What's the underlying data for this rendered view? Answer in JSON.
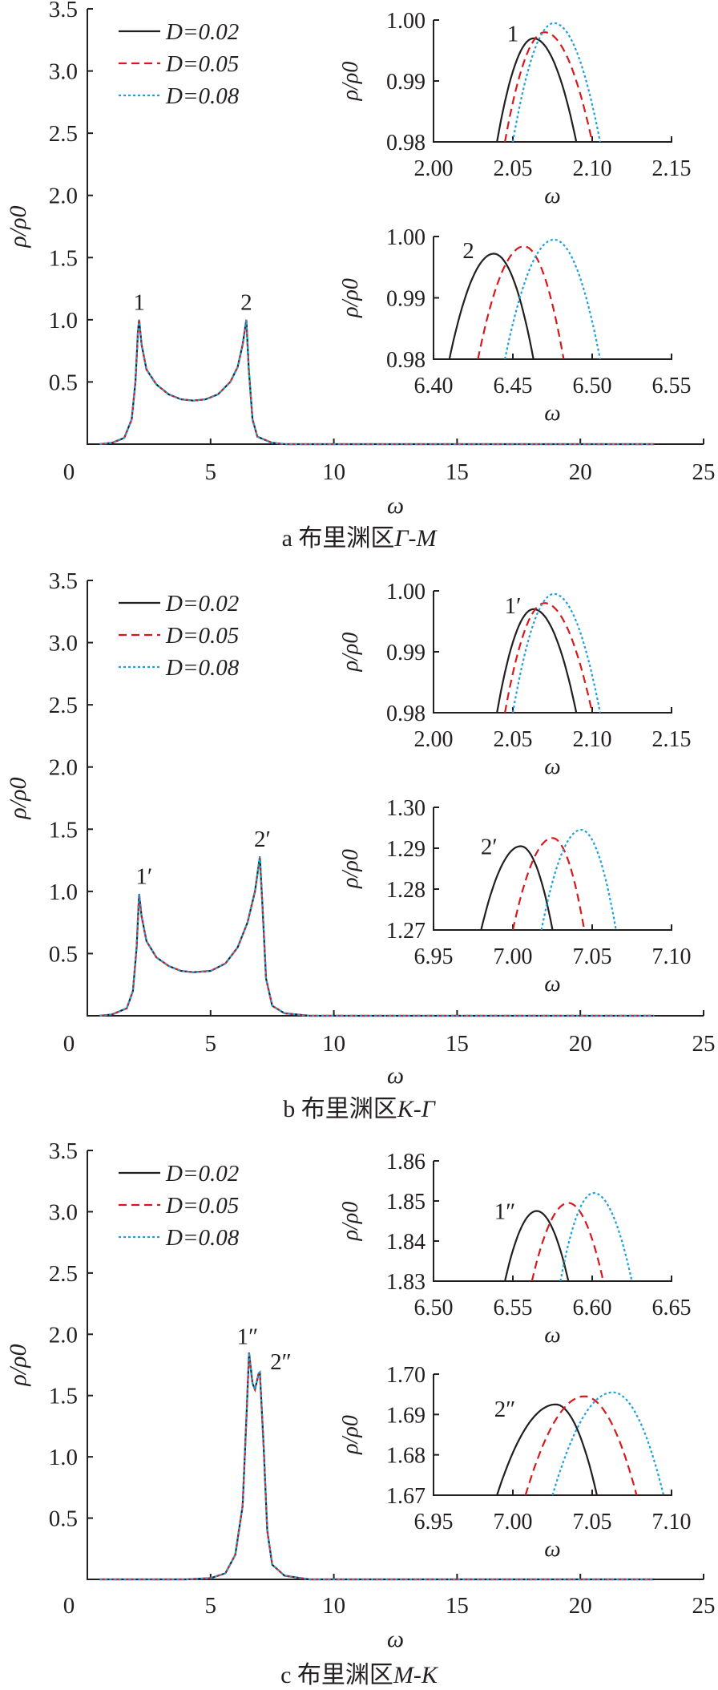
{
  "chart_data": [
    {
      "panel": "a",
      "caption_prefix": "a 布里渊区",
      "caption_region": "Γ-M",
      "main": {
        "type": "line",
        "xlabel": "ω",
        "ylabel": "ρ/ρ0",
        "xlim": [
          0,
          25
        ],
        "ylim": [
          0,
          3.5
        ],
        "xticks": [
          "0",
          "5",
          "10",
          "15",
          "20",
          "25"
        ],
        "yticks": [
          "0.5",
          "1.0",
          "1.5",
          "2.0",
          "2.5",
          "3.0",
          "3.5"
        ],
        "curve": [
          [
            0.5,
            0
          ],
          [
            1,
            0.01
          ],
          [
            1.5,
            0.05
          ],
          [
            1.8,
            0.2
          ],
          [
            1.95,
            0.5
          ],
          [
            2.05,
            0.9
          ],
          [
            2.1,
            1.0
          ],
          [
            2.2,
            0.8
          ],
          [
            2.4,
            0.6
          ],
          [
            2.8,
            0.48
          ],
          [
            3.3,
            0.4
          ],
          [
            3.8,
            0.36
          ],
          [
            4.3,
            0.35
          ],
          [
            4.8,
            0.36
          ],
          [
            5.3,
            0.4
          ],
          [
            5.8,
            0.5
          ],
          [
            6.1,
            0.62
          ],
          [
            6.3,
            0.8
          ],
          [
            6.45,
            1.0
          ],
          [
            6.55,
            0.6
          ],
          [
            6.7,
            0.2
          ],
          [
            6.9,
            0.06
          ],
          [
            7.5,
            0.01
          ],
          [
            8,
            0
          ],
          [
            23,
            0
          ]
        ],
        "annotations": [
          {
            "text": "1",
            "x": 2.1,
            "y": 1.08
          },
          {
            "text": "2",
            "x": 6.45,
            "y": 1.08
          }
        ]
      },
      "insets": [
        {
          "xlim": [
            2.0,
            2.15
          ],
          "ylim": [
            0.98,
            1.0
          ],
          "xticks": [
            "2.00",
            "2.05",
            "2.10",
            "2.15"
          ],
          "yticks": [
            "0.98",
            "0.99",
            "1.00"
          ],
          "xlabel": "ω",
          "ylabel": "ρ/ρ0",
          "series": [
            {
              "x0": 2.04,
              "x1": 2.09,
              "px": 2.063,
              "py": 0.997
            },
            {
              "x0": 2.045,
              "x1": 2.1,
              "px": 2.07,
              "py": 0.998
            },
            {
              "x0": 2.05,
              "x1": 2.105,
              "px": 2.076,
              "py": 0.9995
            }
          ],
          "annotation": {
            "text": "1",
            "x": 2.05,
            "y": 0.9965
          }
        },
        {
          "xlim": [
            6.4,
            6.55
          ],
          "ylim": [
            0.98,
            1.0
          ],
          "xticks": [
            "6.40",
            "6.45",
            "6.50",
            "6.55"
          ],
          "yticks": [
            "0.98",
            "0.99",
            "1.00"
          ],
          "xlabel": "ω",
          "ylabel": "ρ/ρ0",
          "series": [
            {
              "x0": 6.41,
              "x1": 6.463,
              "px": 6.438,
              "py": 0.9972
            },
            {
              "x0": 6.428,
              "x1": 6.482,
              "px": 6.457,
              "py": 0.9984
            },
            {
              "x0": 6.445,
              "x1": 6.505,
              "px": 6.476,
              "py": 0.9995
            }
          ],
          "annotation": {
            "text": "2",
            "x": 6.422,
            "y": 0.9965
          }
        }
      ]
    },
    {
      "panel": "b",
      "caption_prefix": "b 布里渊区",
      "caption_region": "K-Γ",
      "main": {
        "type": "line",
        "xlabel": "ω",
        "ylabel": "ρ/ρ0",
        "xlim": [
          0,
          25
        ],
        "ylim": [
          0,
          3.5
        ],
        "xticks": [
          "0",
          "5",
          "10",
          "15",
          "20",
          "25"
        ],
        "yticks": [
          "0.5",
          "1.0",
          "1.5",
          "2.0",
          "2.5",
          "3.0",
          "3.5"
        ],
        "curve": [
          [
            0.5,
            0
          ],
          [
            1,
            0.01
          ],
          [
            1.6,
            0.06
          ],
          [
            1.85,
            0.2
          ],
          [
            2.0,
            0.55
          ],
          [
            2.1,
            0.98
          ],
          [
            2.2,
            0.8
          ],
          [
            2.4,
            0.6
          ],
          [
            2.8,
            0.47
          ],
          [
            3.3,
            0.4
          ],
          [
            3.8,
            0.36
          ],
          [
            4.3,
            0.35
          ],
          [
            5,
            0.36
          ],
          [
            5.6,
            0.42
          ],
          [
            6.1,
            0.55
          ],
          [
            6.5,
            0.75
          ],
          [
            6.8,
            1.0
          ],
          [
            7.0,
            1.28
          ],
          [
            7.1,
            0.9
          ],
          [
            7.25,
            0.3
          ],
          [
            7.5,
            0.08
          ],
          [
            8,
            0.02
          ],
          [
            9,
            0
          ],
          [
            23,
            0
          ]
        ],
        "annotations": [
          {
            "text": "1′",
            "x": 2.3,
            "y": 1.06
          },
          {
            "text": "2′",
            "x": 7.1,
            "y": 1.36
          }
        ]
      },
      "insets": [
        {
          "xlim": [
            2.0,
            2.15
          ],
          "ylim": [
            0.98,
            1.0
          ],
          "xticks": [
            "2.00",
            "2.05",
            "2.10",
            "2.15"
          ],
          "yticks": [
            "0.98",
            "0.99",
            "1.00"
          ],
          "xlabel": "ω",
          "ylabel": "ρ/ρ0",
          "series": [
            {
              "x0": 2.04,
              "x1": 2.09,
              "px": 2.063,
              "py": 0.997
            },
            {
              "x0": 2.045,
              "x1": 2.1,
              "px": 2.07,
              "py": 0.998
            },
            {
              "x0": 2.05,
              "x1": 2.105,
              "px": 2.076,
              "py": 0.9995
            }
          ],
          "annotation": {
            "text": "1′",
            "x": 2.05,
            "y": 0.9963
          }
        },
        {
          "xlim": [
            6.95,
            7.1
          ],
          "ylim": [
            1.27,
            1.3
          ],
          "xticks": [
            "6.95",
            "7.00",
            "7.05",
            "7.10"
          ],
          "yticks": [
            "1.27",
            "1.28",
            "1.29",
            "1.30"
          ],
          "xlabel": "ω",
          "ylabel": "ρ/ρ0",
          "series": [
            {
              "x0": 6.98,
              "x1": 7.025,
              "px": 7.005,
              "py": 1.2905
            },
            {
              "x0": 7.0,
              "x1": 7.045,
              "px": 7.025,
              "py": 1.2925
            },
            {
              "x0": 7.018,
              "x1": 7.065,
              "px": 7.043,
              "py": 1.2945
            }
          ],
          "annotation": {
            "text": "2′",
            "x": 6.985,
            "y": 1.2885
          }
        }
      ]
    },
    {
      "panel": "c",
      "caption_prefix": "c 布里渊区",
      "caption_region": "M-K",
      "main": {
        "type": "line",
        "xlabel": "ω",
        "ylabel": "ρ/ρ0",
        "xlim": [
          0,
          25
        ],
        "ylim": [
          0,
          3.5
        ],
        "xticks": [
          "0",
          "5",
          "10",
          "15",
          "20",
          "25"
        ],
        "yticks": [
          "0.5",
          "1.0",
          "1.5",
          "2.0",
          "2.5",
          "3.0",
          "3.5"
        ],
        "curve": [
          [
            0.5,
            0
          ],
          [
            4,
            0
          ],
          [
            5,
            0.01
          ],
          [
            5.6,
            0.05
          ],
          [
            6.0,
            0.2
          ],
          [
            6.3,
            0.6
          ],
          [
            6.45,
            1.3
          ],
          [
            6.56,
            1.85
          ],
          [
            6.7,
            1.6
          ],
          [
            6.8,
            1.55
          ],
          [
            6.95,
            1.68
          ],
          [
            7.0,
            1.69
          ],
          [
            7.15,
            1.1
          ],
          [
            7.3,
            0.4
          ],
          [
            7.5,
            0.12
          ],
          [
            8,
            0.03
          ],
          [
            9,
            0
          ],
          [
            23,
            0
          ]
        ],
        "annotations": [
          {
            "text": "1″",
            "x": 6.5,
            "y": 1.92
          },
          {
            "text": "2″",
            "x": 7.2,
            "y": 1.78
          }
        ]
      },
      "insets": [
        {
          "xlim": [
            6.5,
            6.65
          ],
          "ylim": [
            1.83,
            1.86
          ],
          "xticks": [
            "6.50",
            "6.55",
            "6.60",
            "6.65"
          ],
          "yticks": [
            "1.83",
            "1.84",
            "1.85",
            "1.86"
          ],
          "xlabel": "ω",
          "ylabel": "ρ/ρ0",
          "series": [
            {
              "x0": 6.545,
              "x1": 6.585,
              "px": 6.565,
              "py": 1.8475
            },
            {
              "x0": 6.562,
              "x1": 6.607,
              "px": 6.585,
              "py": 1.8495
            },
            {
              "x0": 6.58,
              "x1": 6.625,
              "px": 6.601,
              "py": 1.852
            }
          ],
          "annotation": {
            "text": "1″",
            "x": 6.545,
            "y": 1.8455
          }
        },
        {
          "xlim": [
            6.95,
            7.1
          ],
          "ylim": [
            1.67,
            1.7
          ],
          "xticks": [
            "6.95",
            "7.00",
            "7.05",
            "7.10"
          ],
          "yticks": [
            "1.67",
            "1.68",
            "1.69",
            "1.70"
          ],
          "xlabel": "ω",
          "ylabel": "ρ/ρ0",
          "series": [
            {
              "x0": 6.99,
              "x1": 7.053,
              "px": 7.027,
              "py": 1.6925
            },
            {
              "x0": 7.008,
              "x1": 7.078,
              "px": 7.045,
              "py": 1.6945
            },
            {
              "x0": 7.025,
              "x1": 7.095,
              "px": 7.063,
              "py": 1.6955
            }
          ],
          "annotation": {
            "text": "2″",
            "x": 6.995,
            "y": 1.6895
          }
        }
      ]
    }
  ],
  "legend": [
    {
      "label": "D=0.02",
      "color": "#231f20",
      "dash": "solid"
    },
    {
      "label": "D=0.05",
      "color": "#d7191c",
      "dash": "dashed"
    },
    {
      "label": "D=0.08",
      "color": "#1ea0dc",
      "dash": "dotted"
    }
  ]
}
